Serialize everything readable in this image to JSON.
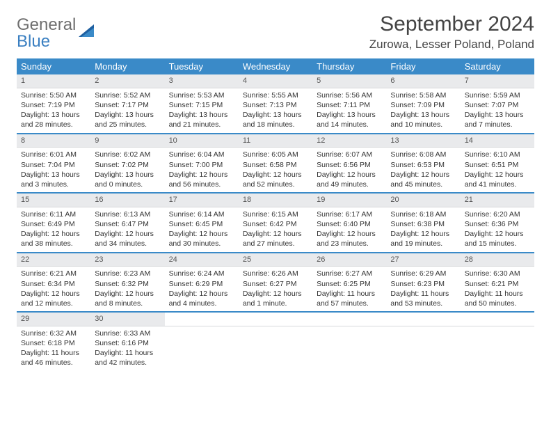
{
  "logo": {
    "part1": "General",
    "part2": "Blue"
  },
  "title": "September 2024",
  "location": "Zurowa, Lesser Poland, Poland",
  "colors": {
    "header_bg": "#3a8ac8",
    "header_fg": "#ffffff",
    "daynum_bg": "#e9eaec",
    "week_divider": "#3a8ac8",
    "logo_gray": "#6f6f6f",
    "logo_blue": "#3a7fc1"
  },
  "day_headers": [
    "Sunday",
    "Monday",
    "Tuesday",
    "Wednesday",
    "Thursday",
    "Friday",
    "Saturday"
  ],
  "weeks": [
    [
      {
        "n": "1",
        "sr": "5:50 AM",
        "ss": "7:19 PM",
        "dl": "13 hours and 28 minutes."
      },
      {
        "n": "2",
        "sr": "5:52 AM",
        "ss": "7:17 PM",
        "dl": "13 hours and 25 minutes."
      },
      {
        "n": "3",
        "sr": "5:53 AM",
        "ss": "7:15 PM",
        "dl": "13 hours and 21 minutes."
      },
      {
        "n": "4",
        "sr": "5:55 AM",
        "ss": "7:13 PM",
        "dl": "13 hours and 18 minutes."
      },
      {
        "n": "5",
        "sr": "5:56 AM",
        "ss": "7:11 PM",
        "dl": "13 hours and 14 minutes."
      },
      {
        "n": "6",
        "sr": "5:58 AM",
        "ss": "7:09 PM",
        "dl": "13 hours and 10 minutes."
      },
      {
        "n": "7",
        "sr": "5:59 AM",
        "ss": "7:07 PM",
        "dl": "13 hours and 7 minutes."
      }
    ],
    [
      {
        "n": "8",
        "sr": "6:01 AM",
        "ss": "7:04 PM",
        "dl": "13 hours and 3 minutes."
      },
      {
        "n": "9",
        "sr": "6:02 AM",
        "ss": "7:02 PM",
        "dl": "13 hours and 0 minutes."
      },
      {
        "n": "10",
        "sr": "6:04 AM",
        "ss": "7:00 PM",
        "dl": "12 hours and 56 minutes."
      },
      {
        "n": "11",
        "sr": "6:05 AM",
        "ss": "6:58 PM",
        "dl": "12 hours and 52 minutes."
      },
      {
        "n": "12",
        "sr": "6:07 AM",
        "ss": "6:56 PM",
        "dl": "12 hours and 49 minutes."
      },
      {
        "n": "13",
        "sr": "6:08 AM",
        "ss": "6:53 PM",
        "dl": "12 hours and 45 minutes."
      },
      {
        "n": "14",
        "sr": "6:10 AM",
        "ss": "6:51 PM",
        "dl": "12 hours and 41 minutes."
      }
    ],
    [
      {
        "n": "15",
        "sr": "6:11 AM",
        "ss": "6:49 PM",
        "dl": "12 hours and 38 minutes."
      },
      {
        "n": "16",
        "sr": "6:13 AM",
        "ss": "6:47 PM",
        "dl": "12 hours and 34 minutes."
      },
      {
        "n": "17",
        "sr": "6:14 AM",
        "ss": "6:45 PM",
        "dl": "12 hours and 30 minutes."
      },
      {
        "n": "18",
        "sr": "6:15 AM",
        "ss": "6:42 PM",
        "dl": "12 hours and 27 minutes."
      },
      {
        "n": "19",
        "sr": "6:17 AM",
        "ss": "6:40 PM",
        "dl": "12 hours and 23 minutes."
      },
      {
        "n": "20",
        "sr": "6:18 AM",
        "ss": "6:38 PM",
        "dl": "12 hours and 19 minutes."
      },
      {
        "n": "21",
        "sr": "6:20 AM",
        "ss": "6:36 PM",
        "dl": "12 hours and 15 minutes."
      }
    ],
    [
      {
        "n": "22",
        "sr": "6:21 AM",
        "ss": "6:34 PM",
        "dl": "12 hours and 12 minutes."
      },
      {
        "n": "23",
        "sr": "6:23 AM",
        "ss": "6:32 PM",
        "dl": "12 hours and 8 minutes."
      },
      {
        "n": "24",
        "sr": "6:24 AM",
        "ss": "6:29 PM",
        "dl": "12 hours and 4 minutes."
      },
      {
        "n": "25",
        "sr": "6:26 AM",
        "ss": "6:27 PM",
        "dl": "12 hours and 1 minute."
      },
      {
        "n": "26",
        "sr": "6:27 AM",
        "ss": "6:25 PM",
        "dl": "11 hours and 57 minutes."
      },
      {
        "n": "27",
        "sr": "6:29 AM",
        "ss": "6:23 PM",
        "dl": "11 hours and 53 minutes."
      },
      {
        "n": "28",
        "sr": "6:30 AM",
        "ss": "6:21 PM",
        "dl": "11 hours and 50 minutes."
      }
    ],
    [
      {
        "n": "29",
        "sr": "6:32 AM",
        "ss": "6:18 PM",
        "dl": "11 hours and 46 minutes."
      },
      {
        "n": "30",
        "sr": "6:33 AM",
        "ss": "6:16 PM",
        "dl": "11 hours and 42 minutes."
      },
      null,
      null,
      null,
      null,
      null
    ]
  ],
  "labels": {
    "sunrise": "Sunrise: ",
    "sunset": "Sunset: ",
    "daylight": "Daylight: "
  }
}
